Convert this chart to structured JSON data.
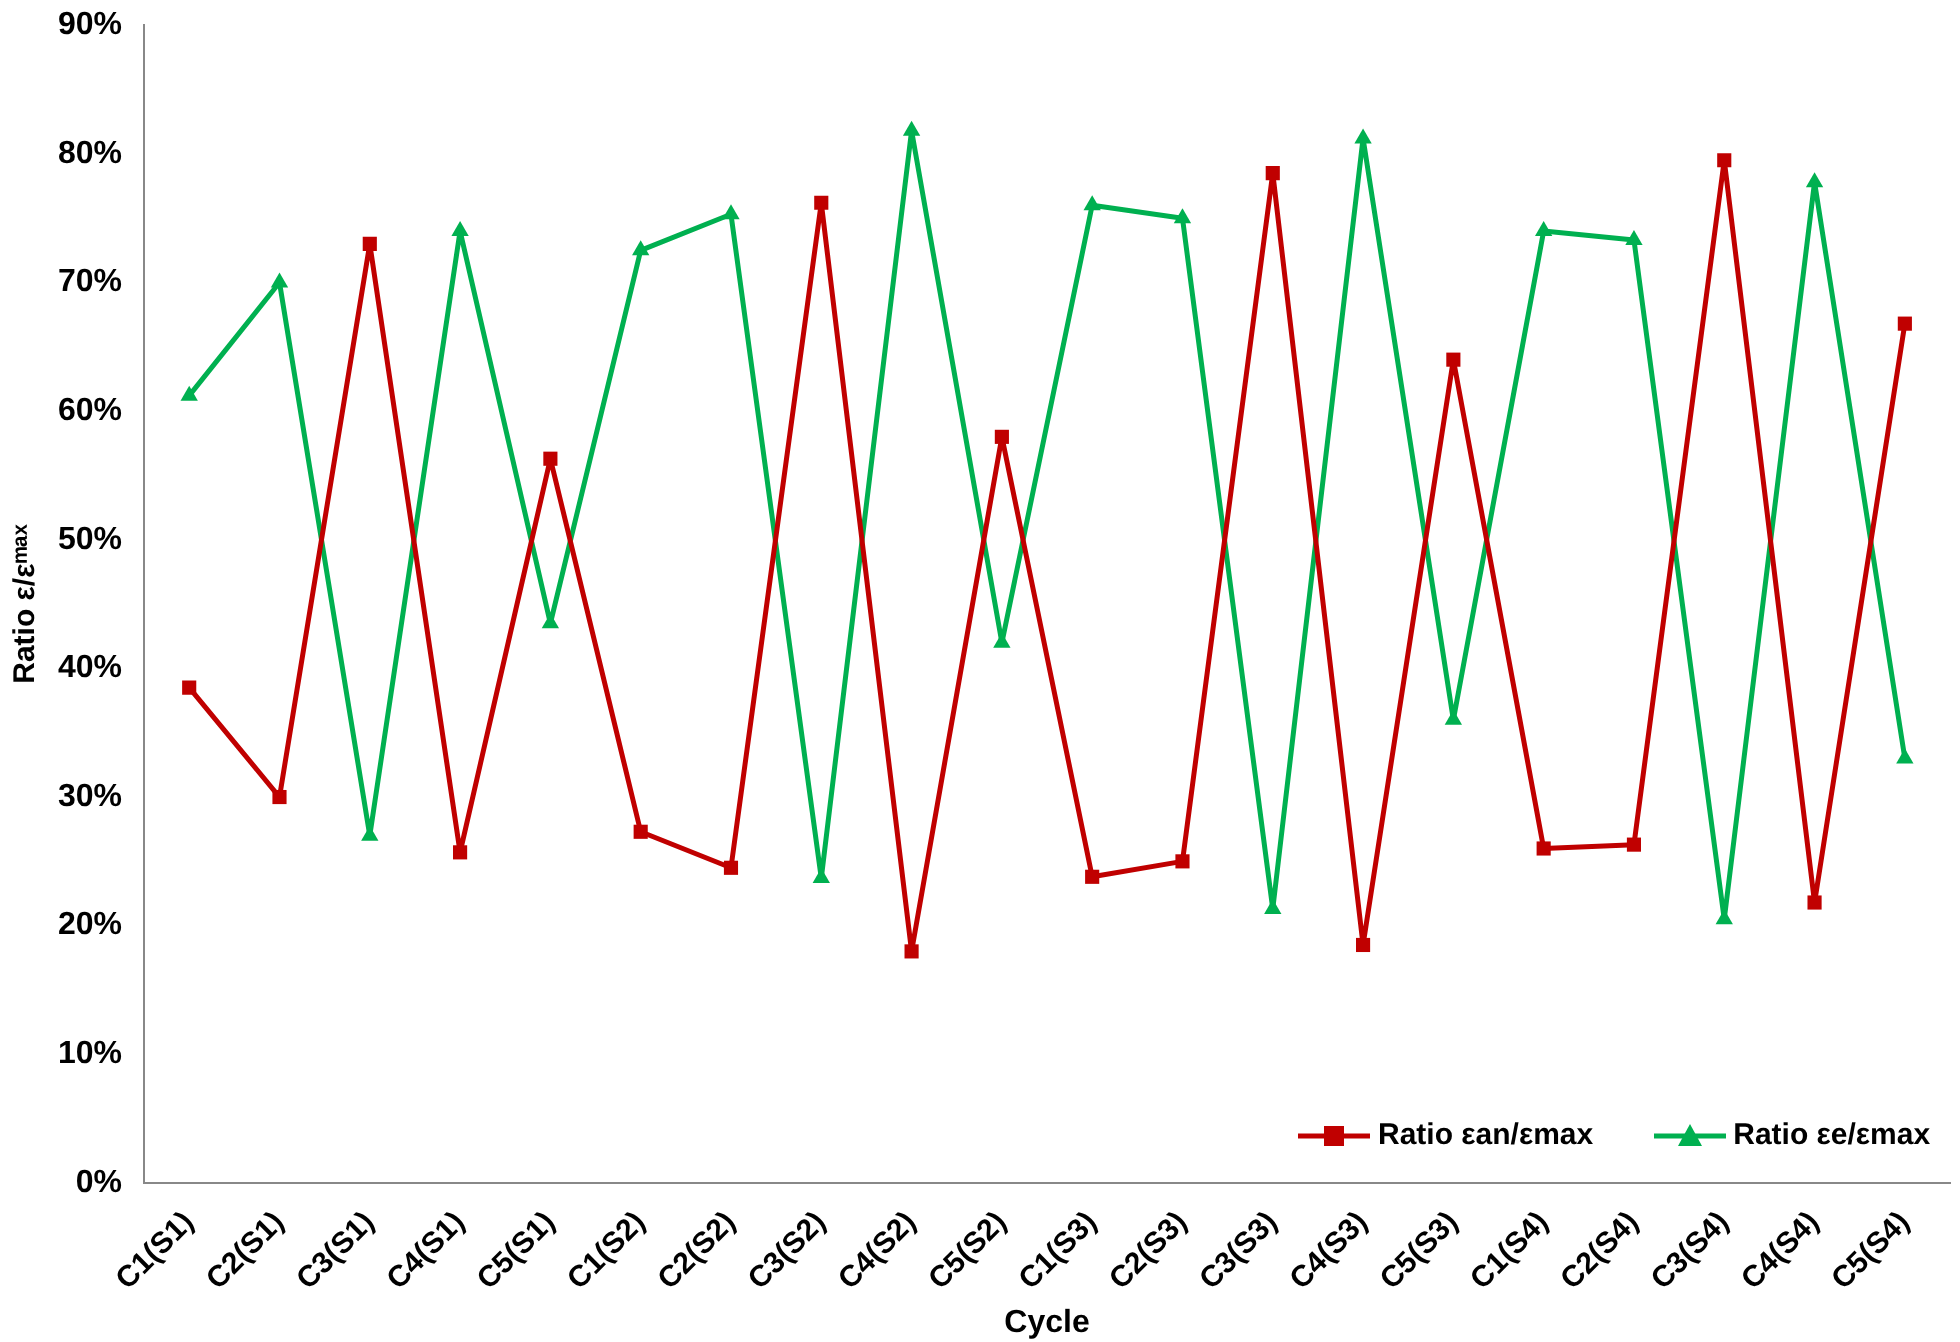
{
  "chart_data": {
    "type": "line",
    "xlabel": "Cycle",
    "ylabel": "Ratio ε/εᵐᵃˣ",
    "categories": [
      "C1(S1)",
      "C2(S1)",
      "C3(S1)",
      "C4(S1)",
      "C5(S1)",
      "C1(S2)",
      "C2(S2)",
      "C3(S2)",
      "C4(S2)",
      "C5(S2)",
      "C1(S3)",
      "C2(S3)",
      "C3(S3)",
      "C4(S3)",
      "C5(S3)",
      "C1(S4)",
      "C2(S4)",
      "C3(S4)",
      "C4(S4)",
      "C5(S4)"
    ],
    "series": [
      {
        "name": "Ratio εan/εmax",
        "color": "#c00000",
        "marker": "square",
        "values": [
          38.5,
          30,
          73,
          25.7,
          56.3,
          27.3,
          24.5,
          76.2,
          18,
          58,
          23.8,
          25,
          78.5,
          18.5,
          64,
          26,
          26.3,
          79.5,
          21.8,
          66.8
        ]
      },
      {
        "name": "Ratio εe/εmax",
        "color": "#00b050",
        "marker": "triangle",
        "values": [
          61.2,
          70,
          27,
          74,
          43.5,
          72.5,
          75.3,
          23.7,
          81.8,
          42,
          76,
          75,
          21.3,
          81.2,
          36,
          74,
          73.3,
          20.5,
          77.8,
          33
        ]
      }
    ],
    "ylim": [
      0,
      90
    ],
    "yticks": [
      {
        "value": 0,
        "label": "0%"
      },
      {
        "value": 10,
        "label": "10%"
      },
      {
        "value": 20,
        "label": "20%"
      },
      {
        "value": 30,
        "label": "30%"
      },
      {
        "value": 40,
        "label": "40%"
      },
      {
        "value": 50,
        "label": "50%"
      },
      {
        "value": 60,
        "label": "60%"
      },
      {
        "value": 70,
        "label": "70%"
      },
      {
        "value": 80,
        "label": "80%"
      },
      {
        "value": 90,
        "label": "90%"
      }
    ],
    "grid": false,
    "legend": "bottom right",
    "line_style": "solid"
  }
}
